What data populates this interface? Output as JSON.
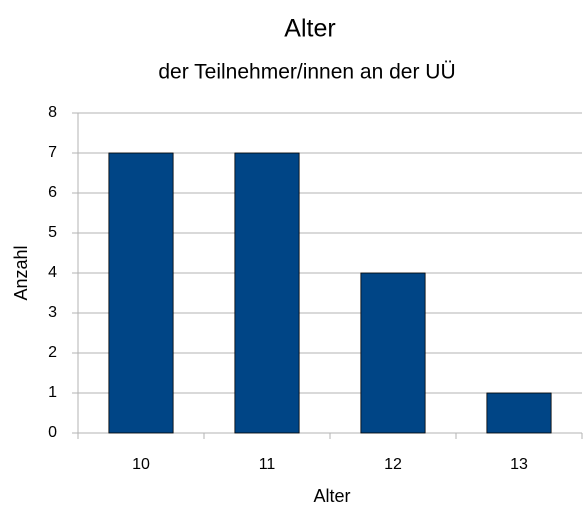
{
  "chart_data": {
    "type": "bar",
    "title": "Alter",
    "subtitle": "der Teilnehmer/innen an der UÜ",
    "x_label": "Alter",
    "y_label": "Anzahl",
    "categories": [
      "10",
      "11",
      "12",
      "13"
    ],
    "values": [
      7,
      7,
      4,
      1
    ],
    "color": "#004586",
    "ylim": [
      0,
      8
    ],
    "yticks": [
      0,
      1,
      2,
      3,
      4,
      5,
      6,
      7,
      8
    ],
    "grid": true
  }
}
